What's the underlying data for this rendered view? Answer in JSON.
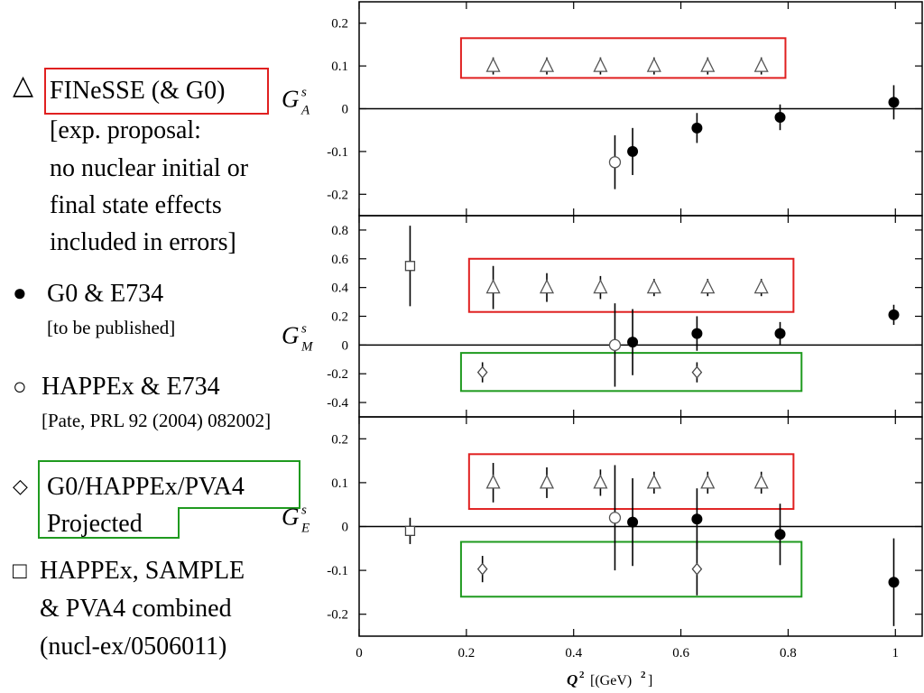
{
  "legend": {
    "finesse": {
      "symbol": "△",
      "label": "FINeSSE (& G0)",
      "notes": [
        "[exp. proposal:",
        "no nuclear initial or",
        "final state effects",
        "included in errors]"
      ]
    },
    "g0e734": {
      "symbol": "●",
      "label": "G0 & E734",
      "note": "[to be published]"
    },
    "happex": {
      "symbol": "○",
      "label": "HAPPEx & E734",
      "note": "[Pate, PRL 92 (2004) 082002]"
    },
    "projected": {
      "symbol": "◇",
      "label_lines": [
        "G0/HAPPEx/PVA4",
        "Projected"
      ]
    },
    "combined": {
      "symbol": "□",
      "label_lines": [
        "HAPPEx, SAMPLE",
        "& PVA4  combined",
        "(nucl-ex/0506011)"
      ]
    }
  },
  "colors": {
    "red_box": "#e02020",
    "green_box": "#1f9a1f",
    "axis": "#000000"
  },
  "chart_data": {
    "type": "scatter",
    "xlabel_main": "Q",
    "xlabel_sup": "2",
    "xlabel_unit": "[(GeV)",
    "xlabel_unit_sup": "2",
    "xlabel_close": "]",
    "xlim": [
      0,
      1.05
    ],
    "xticks": [
      0,
      0.2,
      0.4,
      0.6,
      0.8,
      1
    ],
    "xtick_labels": [
      "0",
      "0.2",
      "0.4",
      "0.6",
      "0.8",
      "1"
    ],
    "panels": [
      {
        "ylabel": "G",
        "ylabel_sup": "s",
        "ylabel_sub": "A",
        "ylim": [
          -0.25,
          0.25
        ],
        "yticks": [
          -0.2,
          -0.1,
          0,
          0.1,
          0.2
        ],
        "ytick_labels": [
          "-0.2",
          "-0.1",
          "0",
          "0.1",
          "0.2"
        ],
        "series": [
          {
            "marker": "triangle",
            "points": [
              {
                "x": 0.25,
                "y": 0.1,
                "err": 0.02
              },
              {
                "x": 0.35,
                "y": 0.1,
                "err": 0.02
              },
              {
                "x": 0.45,
                "y": 0.1,
                "err": 0.02
              },
              {
                "x": 0.55,
                "y": 0.1,
                "err": 0.02
              },
              {
                "x": 0.65,
                "y": 0.1,
                "err": 0.02
              },
              {
                "x": 0.75,
                "y": 0.1,
                "err": 0.02
              }
            ]
          },
          {
            "marker": "filled-circle",
            "points": [
              {
                "x": 0.51,
                "y": -0.1,
                "err": 0.055
              },
              {
                "x": 0.63,
                "y": -0.045,
                "err": 0.035
              },
              {
                "x": 0.785,
                "y": -0.02,
                "err": 0.03
              },
              {
                "x": 0.997,
                "y": 0.015,
                "err": 0.04
              }
            ]
          },
          {
            "marker": "open-circle",
            "points": [
              {
                "x": 0.477,
                "y": -0.125,
                "err": 0.063
              }
            ]
          }
        ],
        "boxes": [
          {
            "color": "red",
            "x": [
              0.19,
              0.795
            ],
            "y": [
              0.072,
              0.165
            ]
          }
        ]
      },
      {
        "ylabel": "G",
        "ylabel_sup": "s",
        "ylabel_sub": "M",
        "ylim": [
          -0.5,
          0.9
        ],
        "yticks": [
          -0.4,
          -0.2,
          0,
          0.2,
          0.4,
          0.6,
          0.8
        ],
        "ytick_labels": [
          "-0.4",
          "-0.2",
          "0",
          "0.2",
          "0.4",
          "0.6",
          "0.8"
        ],
        "series": [
          {
            "marker": "triangle",
            "points": [
              {
                "x": 0.25,
                "y": 0.4,
                "err": 0.15
              },
              {
                "x": 0.35,
                "y": 0.4,
                "err": 0.1
              },
              {
                "x": 0.45,
                "y": 0.4,
                "err": 0.08
              },
              {
                "x": 0.55,
                "y": 0.4,
                "err": 0.06
              },
              {
                "x": 0.65,
                "y": 0.4,
                "err": 0.06
              },
              {
                "x": 0.75,
                "y": 0.4,
                "err": 0.06
              }
            ]
          },
          {
            "marker": "filled-circle",
            "points": [
              {
                "x": 0.51,
                "y": 0.02,
                "err": 0.23
              },
              {
                "x": 0.63,
                "y": 0.08,
                "err": 0.12
              },
              {
                "x": 0.785,
                "y": 0.08,
                "err": 0.08
              },
              {
                "x": 0.997,
                "y": 0.21,
                "err": 0.07
              }
            ]
          },
          {
            "marker": "open-circle",
            "points": [
              {
                "x": 0.477,
                "y": 0.0,
                "err": 0.29
              }
            ]
          },
          {
            "marker": "diamond",
            "points": [
              {
                "x": 0.23,
                "y": -0.19,
                "err": 0.07
              },
              {
                "x": 0.63,
                "y": -0.19,
                "err": 0.07
              }
            ]
          },
          {
            "marker": "square",
            "points": [
              {
                "x": 0.095,
                "y": 0.55,
                "err": 0.28
              }
            ]
          }
        ],
        "boxes": [
          {
            "color": "red",
            "x": [
              0.205,
              0.81
            ],
            "y": [
              0.23,
              0.6
            ]
          },
          {
            "color": "green",
            "x": [
              0.19,
              0.825
            ],
            "y": [
              -0.32,
              -0.055
            ]
          }
        ]
      },
      {
        "ylabel": "G",
        "ylabel_sup": "s",
        "ylabel_sub": "E",
        "ylim": [
          -0.25,
          0.25
        ],
        "yticks": [
          -0.2,
          -0.1,
          0,
          0.1,
          0.2
        ],
        "ytick_labels": [
          "-0.2",
          "-0.1",
          "0",
          "0.1",
          "0.2"
        ],
        "series": [
          {
            "marker": "triangle",
            "points": [
              {
                "x": 0.25,
                "y": 0.1,
                "err": 0.045
              },
              {
                "x": 0.35,
                "y": 0.1,
                "err": 0.035
              },
              {
                "x": 0.45,
                "y": 0.1,
                "err": 0.03
              },
              {
                "x": 0.55,
                "y": 0.1,
                "err": 0.025
              },
              {
                "x": 0.65,
                "y": 0.1,
                "err": 0.025
              },
              {
                "x": 0.75,
                "y": 0.1,
                "err": 0.025
              }
            ]
          },
          {
            "marker": "filled-circle",
            "points": [
              {
                "x": 0.51,
                "y": 0.01,
                "err": 0.1
              },
              {
                "x": 0.63,
                "y": 0.017,
                "err": 0.07
              },
              {
                "x": 0.785,
                "y": -0.018,
                "err": 0.07
              },
              {
                "x": 0.997,
                "y": -0.127,
                "err": 0.1
              }
            ]
          },
          {
            "marker": "open-circle",
            "points": [
              {
                "x": 0.477,
                "y": 0.02,
                "err": 0.12
              }
            ]
          },
          {
            "marker": "diamond",
            "points": [
              {
                "x": 0.23,
                "y": -0.097,
                "err": 0.03
              },
              {
                "x": 0.63,
                "y": -0.097,
                "err": 0.06
              }
            ]
          },
          {
            "marker": "square",
            "points": [
              {
                "x": 0.095,
                "y": -0.01,
                "err": 0.03
              }
            ]
          }
        ],
        "boxes": [
          {
            "color": "red",
            "x": [
              0.205,
              0.81
            ],
            "y": [
              0.04,
              0.165
            ]
          },
          {
            "color": "green",
            "x": [
              0.19,
              0.825
            ],
            "y": [
              -0.16,
              -0.035
            ]
          }
        ]
      }
    ]
  }
}
